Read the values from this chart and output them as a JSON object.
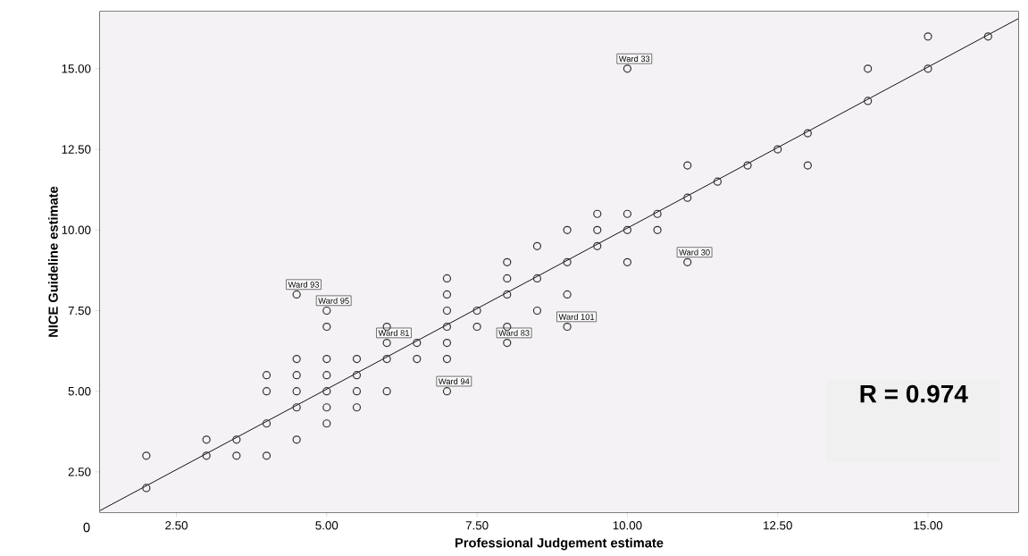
{
  "chart_data": {
    "type": "scatter",
    "xlabel": "Professional Judgement estimate",
    "ylabel": "NICE Guideline estimate",
    "xlim": [
      1.23,
      16.5
    ],
    "ylim": [
      1.25,
      16.77
    ],
    "xticks": [
      {
        "value": 2.5,
        "label": "2.50"
      },
      {
        "value": 5,
        "label": "5.00"
      },
      {
        "value": 7.5,
        "label": "7.50"
      },
      {
        "value": 10,
        "label": "10.00"
      },
      {
        "value": 12.5,
        "label": "12.50"
      },
      {
        "value": 15,
        "label": "15.00"
      }
    ],
    "yticks": [
      {
        "value": 2.5,
        "label": "2.50"
      },
      {
        "value": 5,
        "label": "5.00"
      },
      {
        "value": 7.5,
        "label": "7.50"
      },
      {
        "value": 10,
        "label": "10.00"
      },
      {
        "value": 12.5,
        "label": "12.50"
      },
      {
        "value": 15,
        "label": "15.00"
      }
    ],
    "marker": "circle",
    "series": [
      {
        "color": "#333333",
        "x": [
          2,
          2,
          3,
          3,
          3.5,
          3.5,
          4,
          4,
          4,
          4,
          4.5,
          4.5,
          4.5,
          4.5,
          4.5,
          4.5,
          5,
          5,
          5,
          5,
          5,
          5,
          5,
          5.5,
          5.5,
          5.5,
          5.5,
          6,
          6,
          6,
          6,
          6.5,
          6.5,
          7,
          7,
          7,
          7,
          7,
          7,
          7,
          7.5,
          7.5,
          8,
          8,
          8,
          8,
          8,
          8.5,
          8.5,
          8.5,
          9,
          9,
          9,
          9,
          9.5,
          9.5,
          9.5,
          10,
          10,
          10,
          10,
          10.5,
          10.5,
          11,
          11,
          11,
          11.5,
          12,
          12.5,
          13,
          13,
          14,
          14,
          15,
          15,
          16
        ],
        "values": [
          3,
          2,
          3,
          3.5,
          3.5,
          3,
          3,
          4,
          5,
          5.5,
          3.5,
          4.5,
          5,
          5.5,
          6,
          8,
          4,
          4.5,
          5,
          5.5,
          6,
          7,
          7.5,
          4.5,
          5,
          5.5,
          6,
          5,
          6,
          6.5,
          7,
          6,
          6.5,
          5,
          6,
          6.5,
          7,
          7.5,
          8,
          8.5,
          7,
          7.5,
          6.5,
          7,
          8,
          8.5,
          9,
          7.5,
          8.5,
          9.5,
          7,
          8,
          9,
          10,
          9.5,
          10,
          10.5,
          9,
          10,
          10.5,
          15,
          10,
          10.5,
          9,
          11,
          12,
          11.5,
          12,
          12.5,
          12,
          13,
          14,
          15,
          15,
          16,
          16
        ]
      },
      {
        "type": "line",
        "marker": "none",
        "color": "#000000",
        "x": [
          1.23,
          16.5
        ],
        "values": [
          1.3,
          16.55
        ]
      }
    ],
    "annotations": [
      {
        "text": "Ward 33",
        "x": 10,
        "y": 15
      },
      {
        "text": "Ward 30",
        "x": 11,
        "y": 9
      },
      {
        "text": "Ward 93",
        "x": 4.5,
        "y": 8
      },
      {
        "text": "Ward 95",
        "x": 5,
        "y": 7.5
      },
      {
        "text": "Ward 81",
        "x": 6,
        "y": 6.5
      },
      {
        "text": "Ward 83",
        "x": 8,
        "y": 6.5
      },
      {
        "text": "Ward 101",
        "x": 9,
        "y": 7
      },
      {
        "text": "Ward 94",
        "x": 7,
        "y": 5
      },
      "R = 0.974",
      "0"
    ]
  }
}
